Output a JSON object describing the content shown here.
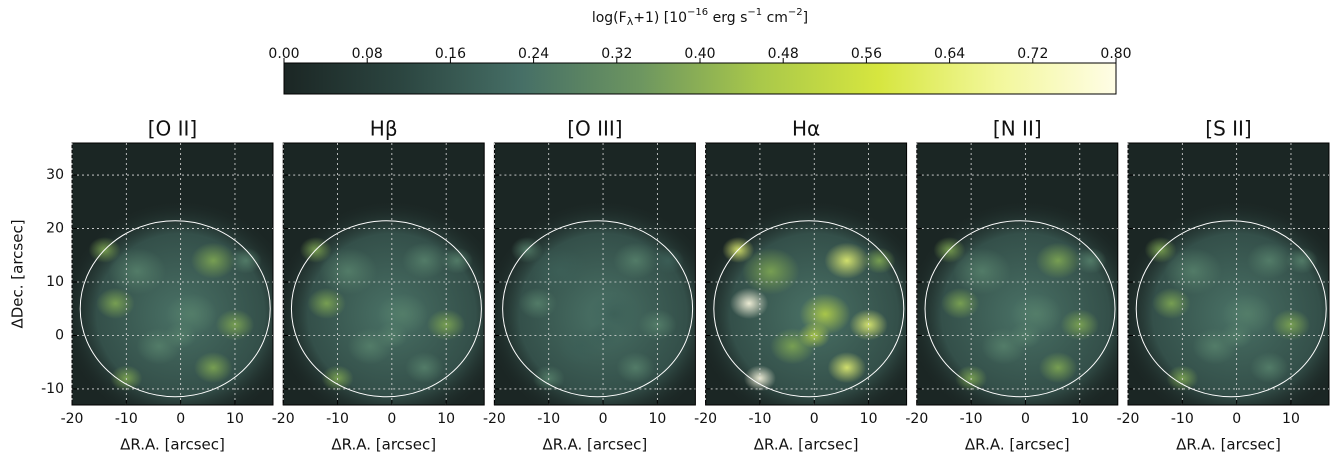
{
  "colorbar": {
    "title_parts": [
      "log(F",
      "λ",
      "+1) [10",
      "−16",
      " erg s",
      "−1",
      " cm",
      "−2",
      "]"
    ],
    "lim": [
      0,
      0.8
    ],
    "ticks": [
      {
        "value": 0,
        "label": "0.00"
      },
      {
        "value": 0.08,
        "label": "0.08"
      },
      {
        "value": 0.16,
        "label": "0.16"
      },
      {
        "value": 0.24,
        "label": "0.24"
      },
      {
        "value": 0.32,
        "label": "0.32"
      },
      {
        "value": 0.4,
        "label": "0.40"
      },
      {
        "value": 0.48,
        "label": "0.48"
      },
      {
        "value": 0.56,
        "label": "0.56"
      },
      {
        "value": 0.64,
        "label": "0.64"
      },
      {
        "value": 0.72,
        "label": "0.72"
      },
      {
        "value": 0.8,
        "label": "0.80"
      }
    ],
    "colors": [
      "#1b2624",
      "#2c4641",
      "#466f66",
      "#6d9660",
      "#a9c84a",
      "#d6e63f",
      "#f2f79a",
      "#fffde6"
    ]
  },
  "chart_data": [
    {
      "type": "image",
      "title": "[O II]",
      "xlabel": "ΔR.A. [arcsec]",
      "ylabel": "ΔDec. [arcsec]",
      "xlim": [
        -20,
        17
      ],
      "ylim": [
        -13,
        36
      ],
      "xticks": [
        -20,
        -10,
        0,
        10
      ],
      "yticks": [
        -10,
        0,
        10,
        20,
        30
      ],
      "grid": true
    },
    {
      "type": "image",
      "title": "Hβ",
      "xlabel": "ΔR.A. [arcsec]",
      "xlim": [
        -20,
        17
      ],
      "ylim": [
        -13,
        36
      ],
      "xticks": [
        -20,
        -10,
        0,
        10
      ],
      "yticks": [
        -10,
        0,
        10,
        20,
        30
      ],
      "grid": true
    },
    {
      "type": "image",
      "title": "[O III]",
      "xlabel": "ΔR.A. [arcsec]",
      "xlim": [
        -20,
        17
      ],
      "ylim": [
        -13,
        36
      ],
      "xticks": [
        -20,
        -10,
        0,
        10
      ],
      "yticks": [
        -10,
        0,
        10,
        20,
        30
      ],
      "grid": true
    },
    {
      "type": "image",
      "title": "Hα",
      "xlabel": "ΔR.A. [arcsec]",
      "xlim": [
        -20,
        17
      ],
      "ylim": [
        -13,
        36
      ],
      "xticks": [
        -20,
        -10,
        0,
        10
      ],
      "yticks": [
        -10,
        0,
        10,
        20,
        30
      ],
      "grid": true
    },
    {
      "type": "image",
      "title": "[N II]",
      "xlabel": "ΔR.A. [arcsec]",
      "xlim": [
        -20,
        17
      ],
      "ylim": [
        -13,
        36
      ],
      "xticks": [
        -20,
        -10,
        0,
        10
      ],
      "yticks": [
        -10,
        0,
        10,
        20,
        30
      ],
      "grid": true
    },
    {
      "type": "image",
      "title": "[S II]",
      "xlabel": "ΔR.A. [arcsec]",
      "xlim": [
        -20,
        17
      ],
      "ylim": [
        -13,
        36
      ],
      "xticks": [
        -20,
        -10,
        0,
        10
      ],
      "yticks": [
        -10,
        0,
        10,
        20,
        30
      ],
      "grid": true
    }
  ]
}
